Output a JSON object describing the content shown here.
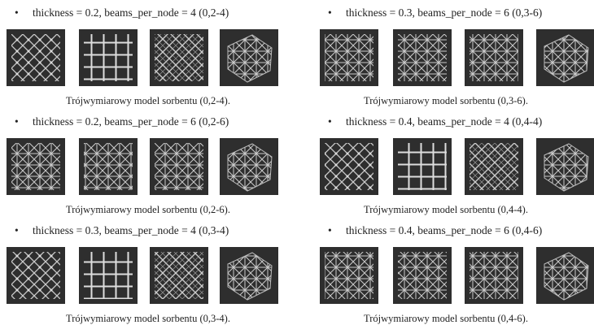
{
  "panels": [
    {
      "heading": "thickness = 0.2, beams_per_node = 4 (0,2-4)",
      "caption": "Trójwymiarowy model sorbentu (0,2-4)."
    },
    {
      "heading": "thickness = 0.3, beams_per_node = 6 (0,3-6)",
      "caption": "Trójwymiarowy model sorbentu (0,3-6)."
    },
    {
      "heading": "thickness = 0.2, beams_per_node = 6 (0,2-6)",
      "caption": "Trójwymiarowy model sorbentu (0,2-6)."
    },
    {
      "heading": "thickness = 0.4, beams_per_node = 4 (0,4-4)",
      "caption": "Trójwymiarowy model sorbentu (0,4-4)."
    },
    {
      "heading": "thickness = 0.3, beams_per_node = 4 (0,3-4)",
      "caption": "Trójwymiarowy model sorbentu (0,3-4)."
    },
    {
      "heading": "thickness = 0.4, beams_per_node = 6 (0,4-6)",
      "caption": "Trójwymiarowy model sorbentu (0,4-6)."
    }
  ]
}
